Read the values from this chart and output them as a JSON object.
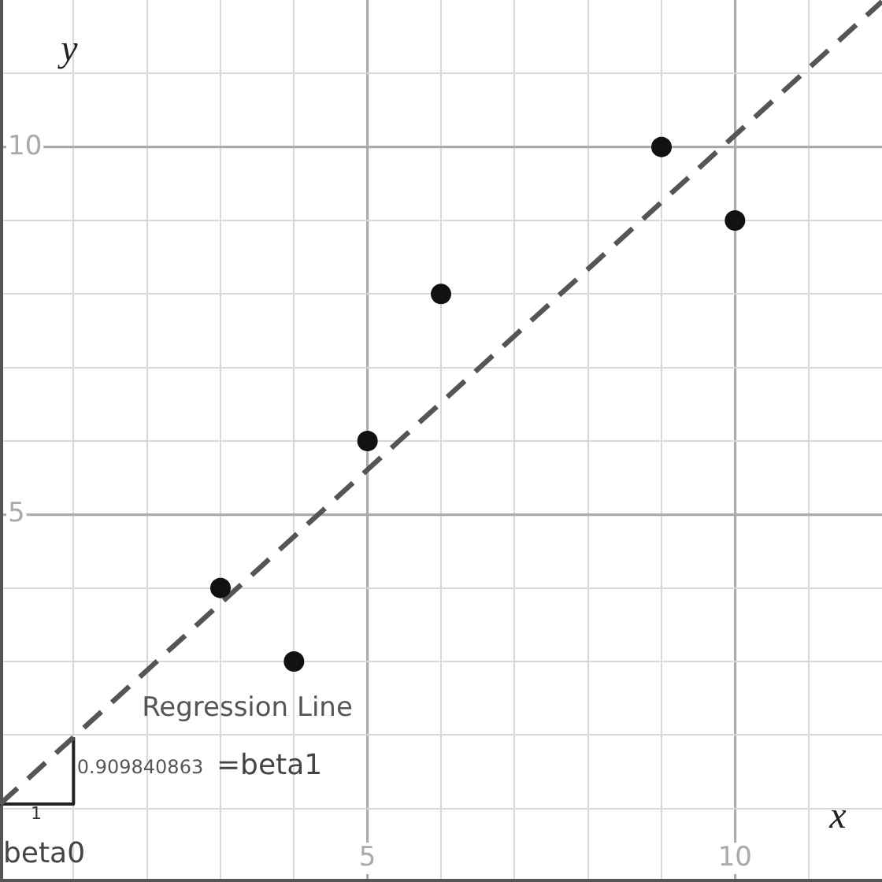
{
  "chart_data": {
    "type": "scatter",
    "xlabel": "x",
    "ylabel": "y",
    "xlim": [
      0,
      12
    ],
    "ylim": [
      0,
      12
    ],
    "xticks": [
      {
        "value": 1,
        "label": null
      },
      {
        "value": 2,
        "label": null
      },
      {
        "value": 3,
        "label": null
      },
      {
        "value": 4,
        "label": null
      },
      5,
      {
        "value": 6,
        "label": null
      },
      {
        "value": 7,
        "label": null
      },
      {
        "value": 8,
        "label": null
      },
      {
        "value": 9,
        "label": null
      },
      10,
      {
        "value": 11,
        "label": null
      }
    ],
    "yticks": [
      {
        "value": 1,
        "label": null
      },
      {
        "value": 2,
        "label": null
      },
      {
        "value": 3,
        "label": null
      },
      {
        "value": 4,
        "label": null
      },
      5,
      {
        "value": 6,
        "label": null
      },
      {
        "value": 7,
        "label": null
      },
      {
        "value": 8,
        "label": null
      },
      {
        "value": 9,
        "label": null
      },
      10,
      {
        "value": 11,
        "label": null
      }
    ],
    "grid": true,
    "series": [
      {
        "type": "scatter",
        "color": "#111111",
        "marker": "circle",
        "x": [
          3,
          4,
          5,
          6,
          9,
          10
        ],
        "values": [
          4,
          3,
          6,
          8,
          10,
          9
        ]
      },
      {
        "type": "line",
        "color": "#555555",
        "marker": "none",
        "line_style": "dashed",
        "x": [
          0,
          12
        ],
        "values": [
          1.06,
          11.98
        ]
      },
      {
        "type": "line",
        "color": "#222222",
        "marker": "none",
        "line_style": "solid",
        "x": [
          0,
          1,
          1
        ],
        "values": [
          1.06,
          1.06,
          1.97
        ]
      }
    ],
    "annotations": [
      "Regression Line",
      "0.909840863",
      "=beta1",
      "1",
      "beta0"
    ]
  }
}
